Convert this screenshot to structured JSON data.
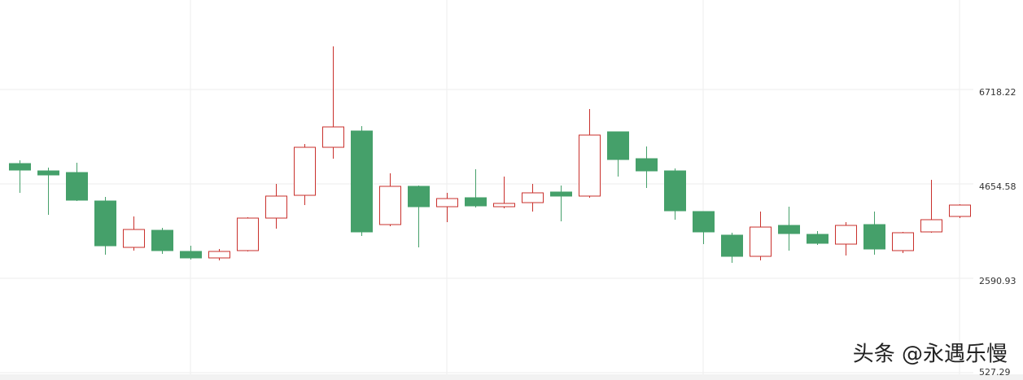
{
  "chart_data": {
    "type": "candlestick",
    "ylim": [
      527.29,
      8675
    ],
    "yticks": [
      527.29,
      2590.93,
      4654.58,
      6718.22
    ],
    "grid": true,
    "up_color": "#c9302c",
    "down_color": "#45a06a",
    "open": [
      5099,
      4939,
      4903,
      4281,
      3267,
      3640,
      3178,
      3036,
      3196,
      3907,
      4405,
      5455,
      5811,
      3765,
      4601,
      4156,
      4352,
      4156,
      4245,
      4477,
      4388,
      5793,
      5206,
      4939,
      4050,
      3534,
      3071,
      3747,
      3551,
      3338,
      3765,
      3196,
      3605,
      3943
    ],
    "high": [
      5170,
      5010,
      5117,
      4370,
      3943,
      3694,
      3302,
      3231,
      3925,
      4655,
      5526,
      7661,
      5917,
      4886,
      4619,
      4459,
      4975,
      4815,
      4655,
      4619,
      6291,
      5793,
      5473,
      4993,
      4050,
      3587,
      4050,
      4156,
      3622,
      3818,
      4050,
      3605,
      4743,
      4210
    ],
    "low": [
      4459,
      3978,
      4281,
      3107,
      3196,
      3125,
      3000,
      2982,
      3178,
      3676,
      4192,
      5206,
      3516,
      3729,
      3267,
      3818,
      4139,
      4121,
      4050,
      3836,
      4352,
      4815,
      4566,
      3872,
      3338,
      2929,
      2982,
      3196,
      3320,
      3089,
      3107,
      3142,
      3587,
      3907
    ],
    "close": [
      4957,
      4850,
      4299,
      3302,
      3658,
      3196,
      3036,
      3178,
      3907,
      4388,
      5455,
      5900,
      3605,
      4601,
      4156,
      4334,
      4174,
      4228,
      4459,
      4388,
      5722,
      5188,
      4939,
      4067,
      3605,
      3071,
      3711,
      3569,
      3356,
      3747,
      3231,
      3587,
      3872,
      4192
    ]
  },
  "watermark": "头条 @永遇乐慢"
}
